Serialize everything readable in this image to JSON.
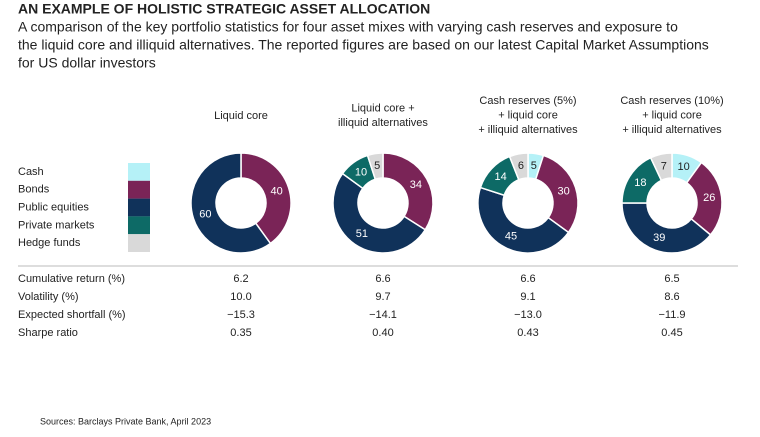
{
  "title": "AN EXAMPLE OF HOLISTIC STRATEGIC ASSET ALLOCATION",
  "subtitle": [
    "A comparison of the key portfolio statistics for four asset mixes with varying cash reserves and exposure to",
    "the liquid core and illiquid alternatives. The reported figures are based on our latest Capital Market Assumptions",
    "for US dollar investors"
  ],
  "legend": [
    {
      "name": "Cash",
      "color": "#b5f1f7"
    },
    {
      "name": "Bonds",
      "color": "#7a2457"
    },
    {
      "name": "Public equities",
      "color": "#10325a"
    },
    {
      "name": "Private markets",
      "color": "#0d6a66"
    },
    {
      "name": "Hedge funds",
      "color": "#d9d9d9"
    }
  ],
  "chart_data": [
    {
      "type": "pie",
      "donut": true,
      "title": [
        "Liquid core"
      ],
      "categories": [
        "Bonds",
        "Public equities"
      ],
      "values": [
        40,
        60
      ]
    },
    {
      "type": "pie",
      "donut": true,
      "title": [
        "Liquid core +",
        "illiquid alternatives"
      ],
      "categories": [
        "Bonds",
        "Public equities",
        "Private markets",
        "Hedge funds"
      ],
      "values": [
        34,
        51,
        10,
        5
      ]
    },
    {
      "type": "pie",
      "donut": true,
      "title": [
        "Cash reserves (5%)",
        "+ liquid core",
        "+ illiquid alternatives"
      ],
      "categories": [
        "Cash",
        "Bonds",
        "Public equities",
        "Private markets",
        "Hedge funds"
      ],
      "values": [
        5,
        30,
        45,
        14,
        6
      ]
    },
    {
      "type": "pie",
      "donut": true,
      "title": [
        "Cash reserves (10%)",
        "+ liquid core",
        "+ illiquid alternatives"
      ],
      "categories": [
        "Cash",
        "Bonds",
        "Public equities",
        "Private markets",
        "Hedge funds"
      ],
      "values": [
        10,
        26,
        39,
        18,
        7
      ]
    }
  ],
  "table": {
    "rows": [
      {
        "label": "Cumulative return (%)",
        "values": [
          "6.2",
          "6.6",
          "6.6",
          "6.5"
        ]
      },
      {
        "label": "Volatility (%)",
        "values": [
          "10.0",
          "9.7",
          "9.1",
          "8.6"
        ]
      },
      {
        "label": "Expected shortfall (%)",
        "values": [
          "−15.3",
          "−14.1",
          "−13.0",
          "−11.9"
        ]
      },
      {
        "label": "Sharpe ratio",
        "values": [
          "0.35",
          "0.40",
          "0.43",
          "0.45"
        ]
      }
    ]
  },
  "source": "Sources: Barclays Private Bank, April 2023"
}
